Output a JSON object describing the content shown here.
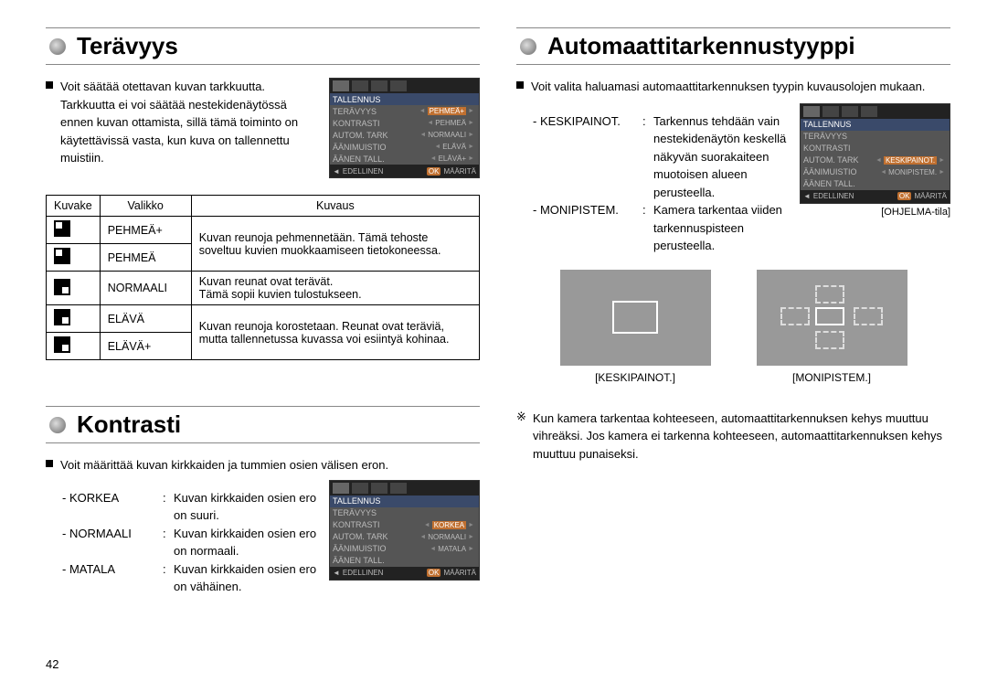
{
  "left": {
    "h1": "Terävyys",
    "intro": "Voit säätää otettavan kuvan tarkkuutta. Tarkkuutta ei voi säätää nestekidenäytössä ennen kuvan ottamista, sillä tämä toiminto on käytettävissä vasta, kun kuva on tallennettu muistiin.",
    "menu1": {
      "title": "TALLENNUS",
      "rows": [
        {
          "l": "TERÄVYYS",
          "v": "PEHMEÄ+",
          "sel": true
        },
        {
          "l": "KONTRASTI",
          "v": "PEHMEÄ"
        },
        {
          "l": "AUTOM. TARK",
          "v": "NORMAALI"
        },
        {
          "l": "ÄÄNIMUISTIO",
          "v": "ELÄVÄ"
        },
        {
          "l": "ÄÄNEN TALL.",
          "v": "ELÄVÄ+"
        }
      ],
      "back": "EDELLINEN",
      "ok": "OK",
      "set": "MÄÄRITÄ"
    },
    "table": {
      "h_icon": "Kuvake",
      "h_menu": "Valikko",
      "h_desc": "Kuvaus",
      "r1_label": "PEHMEÄ+",
      "r2_label": "PEHMEÄ",
      "r12_desc": "Kuvan reunoja pehmennetään. Tämä tehoste soveltuu kuvien muokkaamiseen tietokoneessa.",
      "r3_label": "NORMAALI",
      "r3_desc1": "Kuvan reunat ovat terävät.",
      "r3_desc2": "Tämä sopii kuvien tulostukseen.",
      "r4_label": "ELÄVÄ",
      "r5_label": "ELÄVÄ+",
      "r45_desc": "Kuvan reunoja korostetaan. Reunat ovat teräviä, mutta tallennetussa kuvassa voi esiintyä kohinaa."
    },
    "h2": "Kontrasti",
    "kontrasti_intro": "Voit määrittää kuvan kirkkaiden ja tummien osien välisen eron.",
    "kdef": [
      {
        "t": "- KORKEA",
        "d": "Kuvan kirkkaiden osien ero on suuri."
      },
      {
        "t": "- NORMAALI",
        "d": "Kuvan kirkkaiden osien ero on normaali."
      },
      {
        "t": "- MATALA",
        "d": "Kuvan kirkkaiden osien ero on vähäinen."
      }
    ],
    "menu2": {
      "title": "TALLENNUS",
      "rows": [
        {
          "l": "TERÄVYYS",
          "v": ""
        },
        {
          "l": "KONTRASTI",
          "v": "KORKEA",
          "sel": true
        },
        {
          "l": "AUTOM. TARK",
          "v": "NORMAALI"
        },
        {
          "l": "ÄÄNIMUISTIO",
          "v": "MATALA"
        },
        {
          "l": "ÄÄNEN TALL.",
          "v": ""
        }
      ],
      "back": "EDELLINEN",
      "ok": "OK",
      "set": "MÄÄRITÄ"
    }
  },
  "right": {
    "h1": "Automaattitarkennustyyppi",
    "intro": "Voit valita haluamasi automaattitarkennuksen tyypin kuvausolojen mukaan.",
    "afdef": [
      {
        "t": "- KESKIPAINOT.",
        "d": "Tarkennus tehdään vain nestekidenäytön keskellä näkyvän suorakaiteen muotoisen alueen perusteella."
      },
      {
        "t": "- MONIPISTEM.",
        "d": "Kamera tarkentaa viiden tarkennuspisteen perusteella."
      }
    ],
    "menu3": {
      "title": "TALLENNUS",
      "rows": [
        {
          "l": "TERÄVYYS",
          "v": ""
        },
        {
          "l": "KONTRASTI",
          "v": ""
        },
        {
          "l": "AUTOM. TARK",
          "v": "KESKIPAINOT.",
          "sel": true
        },
        {
          "l": "ÄÄNIMUISTIO",
          "v": "MONIPISTEM."
        },
        {
          "l": "ÄÄNEN TALL.",
          "v": ""
        }
      ],
      "back": "EDELLINEN",
      "ok": "OK",
      "set": "MÄÄRITÄ",
      "caption": "[OHJELMA-tila]"
    },
    "diag": {
      "cap1": "[KESKIPAINOT.]",
      "cap2": "[MONIPISTEM.]"
    },
    "note": "Kun kamera tarkentaa kohteeseen, automaattitarkennuksen kehys muuttuu vihreäksi. Jos kamera ei tarkenna kohteeseen, automaattitarkennuksen kehys muuttuu punaiseksi."
  },
  "pagenum": "42"
}
